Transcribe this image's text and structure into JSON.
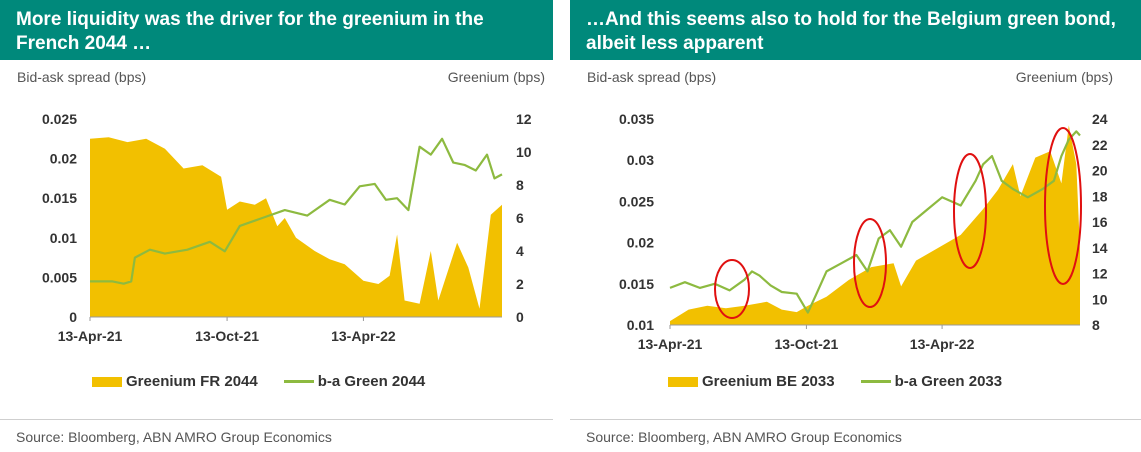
{
  "colors": {
    "title_bg": "#00897B",
    "area": "#F2C000",
    "line": "#8DBA40",
    "circle": "#E01010"
  },
  "charts": [
    {
      "title": "More liquidity was the driver for the greenium in the French 2044 …",
      "left_axis_label": "Bid-ask spread (bps)",
      "right_axis_label": "Greenium (bps)",
      "source": "Source: Bloomberg, ABN AMRO Group Economics",
      "legend": {
        "area": "Greenium FR 2044",
        "line": "b-a Green 2044"
      }
    },
    {
      "title": "…And this seems also to hold for the Belgium green bond, albeit less apparent",
      "left_axis_label": "Bid-ask spread (bps)",
      "right_axis_label": "Greenium (bps)",
      "source": "Source: Bloomberg, ABN AMRO Group Economics",
      "legend": {
        "area": "Greenium BE 2033",
        "line": "b-a Green 2033"
      }
    }
  ],
  "chart_data": [
    {
      "type": "area+line",
      "x_ticks": [
        "13-Apr-21",
        "13-Oct-21",
        "13-Apr-22"
      ],
      "x_tick_days": [
        0,
        183,
        365
      ],
      "x_range_days": [
        0,
        550
      ],
      "left_axis": {
        "label": "Bid-ask spread (bps)",
        "range": [
          0,
          0.025
        ],
        "ticks": [
          "0",
          "0.005",
          "0.01",
          "0.015",
          "0.02",
          "0.025"
        ]
      },
      "right_axis": {
        "label": "Greenium (bps)",
        "range": [
          0,
          12
        ],
        "ticks": [
          "0",
          "2",
          "4",
          "6",
          "8",
          "10",
          "12"
        ]
      },
      "series": [
        {
          "name": "Greenium FR 2044",
          "kind": "area",
          "axis": "right",
          "points": [
            [
              0,
              10.8
            ],
            [
              25,
              10.9
            ],
            [
              50,
              10.6
            ],
            [
              75,
              10.8
            ],
            [
              100,
              10.2
            ],
            [
              125,
              9.0
            ],
            [
              150,
              9.2
            ],
            [
              175,
              8.5
            ],
            [
              183,
              6.5
            ],
            [
              200,
              7.0
            ],
            [
              220,
              6.8
            ],
            [
              235,
              7.2
            ],
            [
              250,
              5.5
            ],
            [
              260,
              6.0
            ],
            [
              275,
              4.8
            ],
            [
              300,
              4.0
            ],
            [
              320,
              3.5
            ],
            [
              340,
              3.2
            ],
            [
              355,
              2.6
            ],
            [
              365,
              2.2
            ],
            [
              385,
              2.0
            ],
            [
              400,
              2.5
            ],
            [
              410,
              5.0
            ],
            [
              420,
              1.0
            ],
            [
              440,
              0.8
            ],
            [
              455,
              4.0
            ],
            [
              465,
              1.0
            ],
            [
              490,
              4.5
            ],
            [
              505,
              3.0
            ],
            [
              520,
              0.5
            ],
            [
              535,
              6.2
            ],
            [
              550,
              6.8
            ]
          ]
        },
        {
          "name": "b-a Green 2044",
          "kind": "line",
          "axis": "left",
          "points": [
            [
              0,
              0.0045
            ],
            [
              30,
              0.0045
            ],
            [
              45,
              0.0042
            ],
            [
              55,
              0.0045
            ],
            [
              60,
              0.0075
            ],
            [
              80,
              0.0085
            ],
            [
              100,
              0.008
            ],
            [
              130,
              0.0085
            ],
            [
              160,
              0.0095
            ],
            [
              180,
              0.0083
            ],
            [
              200,
              0.0115
            ],
            [
              230,
              0.0125
            ],
            [
              260,
              0.0135
            ],
            [
              290,
              0.0128
            ],
            [
              320,
              0.0148
            ],
            [
              340,
              0.0142
            ],
            [
              360,
              0.0165
            ],
            [
              380,
              0.0168
            ],
            [
              395,
              0.0148
            ],
            [
              410,
              0.015
            ],
            [
              425,
              0.0135
            ],
            [
              440,
              0.0215
            ],
            [
              455,
              0.0205
            ],
            [
              470,
              0.0225
            ],
            [
              485,
              0.0195
            ],
            [
              500,
              0.0192
            ],
            [
              515,
              0.0185
            ],
            [
              530,
              0.0205
            ],
            [
              540,
              0.0175
            ],
            [
              550,
              0.018
            ]
          ]
        }
      ]
    },
    {
      "type": "area+line",
      "x_ticks": [
        "13-Apr-21",
        "13-Oct-21",
        "13-Apr-22"
      ],
      "x_tick_days": [
        0,
        183,
        365
      ],
      "x_range_days": [
        0,
        550
      ],
      "left_axis": {
        "label": "Bid-ask spread (bps)",
        "range": [
          0.01,
          0.035
        ],
        "ticks": [
          "0.01",
          "0.015",
          "0.02",
          "0.025",
          "0.03",
          "0.035"
        ]
      },
      "right_axis": {
        "label": "Greenium (bps)",
        "range": [
          8,
          24
        ],
        "ticks": [
          "8",
          "10",
          "12",
          "14",
          "16",
          "18",
          "20",
          "22",
          "24"
        ]
      },
      "series": [
        {
          "name": "Greenium BE 2033",
          "kind": "area",
          "axis": "right",
          "points": [
            [
              0,
              8.3
            ],
            [
              25,
              9.2
            ],
            [
              50,
              9.5
            ],
            [
              75,
              9.3
            ],
            [
              100,
              9.5
            ],
            [
              130,
              9.8
            ],
            [
              150,
              9.2
            ],
            [
              170,
              9.0
            ],
            [
              185,
              9.5
            ],
            [
              210,
              10.2
            ],
            [
              240,
              11.5
            ],
            [
              270,
              12.5
            ],
            [
              300,
              12.8
            ],
            [
              310,
              11.0
            ],
            [
              330,
              13.0
            ],
            [
              360,
              14.0
            ],
            [
              390,
              15.0
            ],
            [
              420,
              17.0
            ],
            [
              440,
              18.5
            ],
            [
              460,
              20.5
            ],
            [
              470,
              18.0
            ],
            [
              490,
              21.0
            ],
            [
              510,
              21.5
            ],
            [
              525,
              19.0
            ],
            [
              535,
              23.5
            ],
            [
              545,
              20.5
            ],
            [
              550,
              13.8
            ]
          ]
        },
        {
          "name": "b-a Green 2033",
          "kind": "line",
          "axis": "left",
          "points": [
            [
              0,
              0.0145
            ],
            [
              20,
              0.0152
            ],
            [
              40,
              0.0145
            ],
            [
              60,
              0.015
            ],
            [
              80,
              0.0142
            ],
            [
              100,
              0.0155
            ],
            [
              110,
              0.0165
            ],
            [
              120,
              0.016
            ],
            [
              135,
              0.0148
            ],
            [
              150,
              0.014
            ],
            [
              170,
              0.0138
            ],
            [
              185,
              0.0115
            ],
            [
              195,
              0.0135
            ],
            [
              210,
              0.0165
            ],
            [
              230,
              0.0175
            ],
            [
              250,
              0.0185
            ],
            [
              265,
              0.0165
            ],
            [
              280,
              0.0205
            ],
            [
              295,
              0.0215
            ],
            [
              310,
              0.0195
            ],
            [
              325,
              0.0225
            ],
            [
              345,
              0.024
            ],
            [
              365,
              0.0255
            ],
            [
              390,
              0.0245
            ],
            [
              410,
              0.0275
            ],
            [
              420,
              0.0295
            ],
            [
              432,
              0.0305
            ],
            [
              445,
              0.0275
            ],
            [
              460,
              0.0265
            ],
            [
              480,
              0.0255
            ],
            [
              500,
              0.0265
            ],
            [
              515,
              0.0275
            ],
            [
              525,
              0.0305
            ],
            [
              535,
              0.0325
            ],
            [
              545,
              0.0335
            ],
            [
              550,
              0.033
            ]
          ]
        }
      ]
    }
  ]
}
